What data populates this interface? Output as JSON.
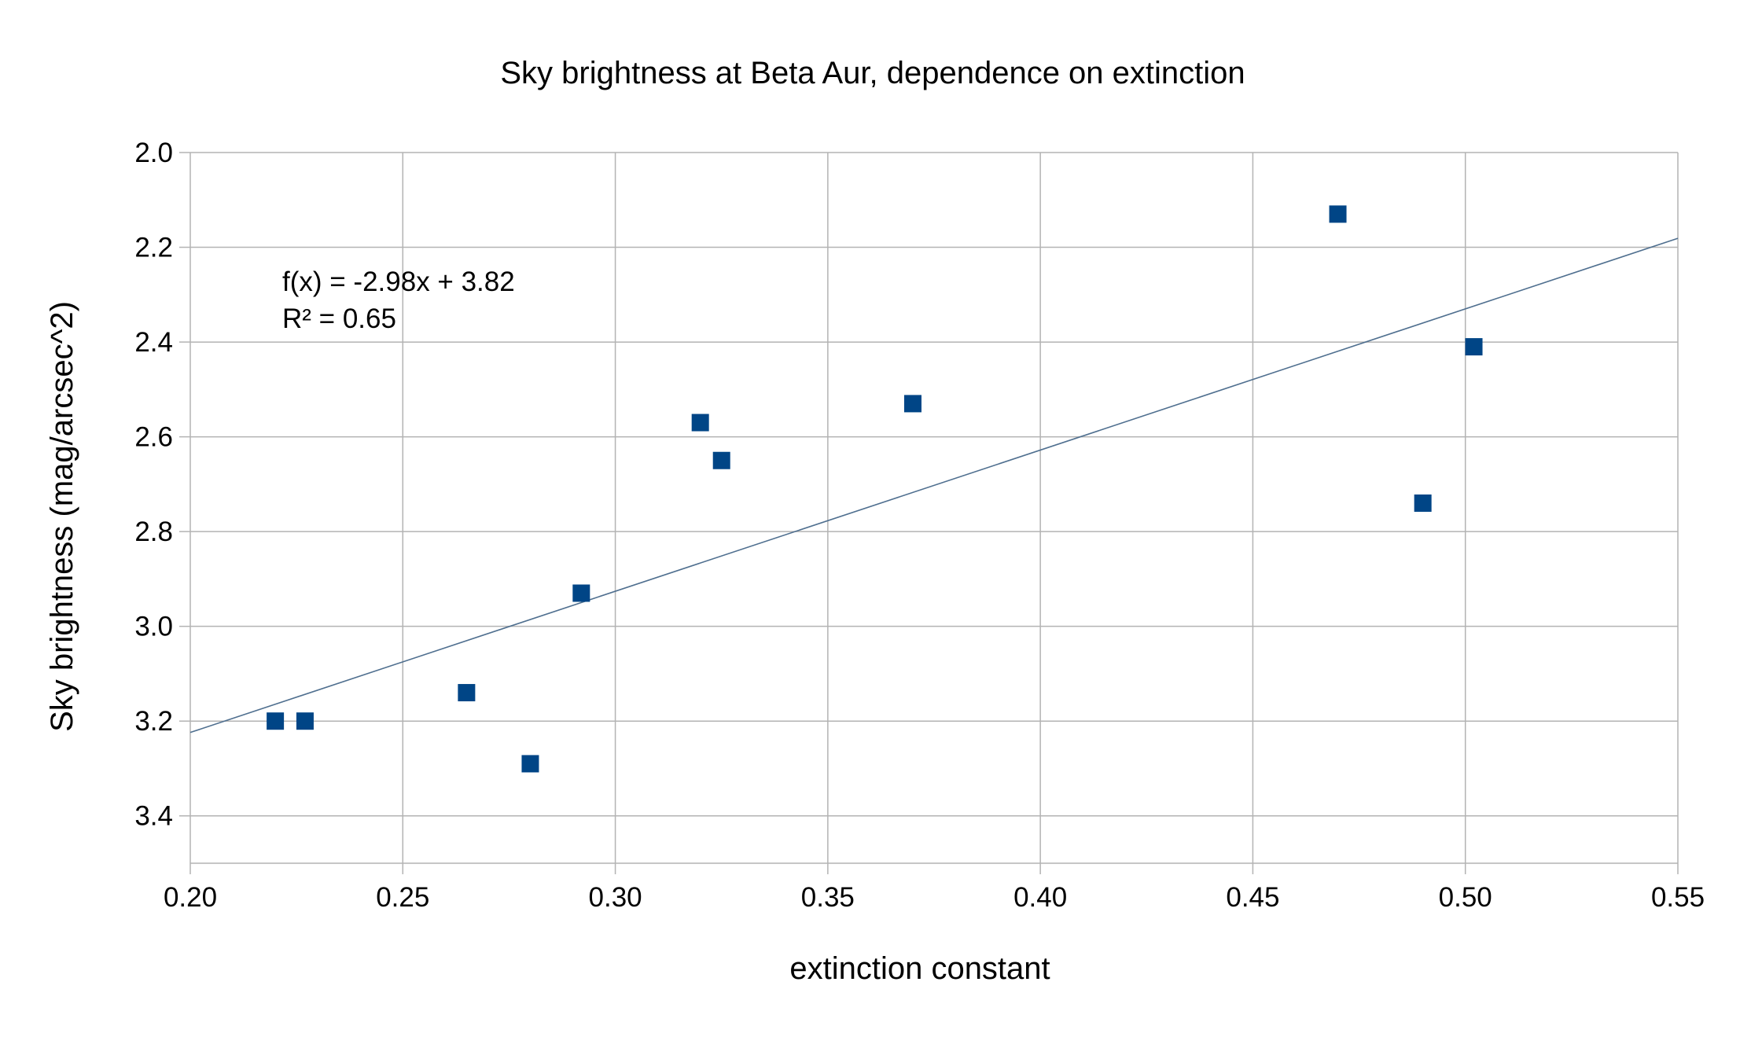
{
  "chart_data": {
    "type": "scatter",
    "title": "Sky brightness at Beta Aur, dependence on extinction",
    "xlabel": "extinction constant",
    "ylabel": "Sky brightness (mag/arcsec^2)",
    "xlim": [
      0.2,
      0.55
    ],
    "ylim": [
      2.0,
      3.5
    ],
    "y_inverted": true,
    "x_ticks": [
      0.2,
      0.25,
      0.3,
      0.35,
      0.4,
      0.45,
      0.5,
      0.55
    ],
    "x_tick_labels": [
      "0.20",
      "0.25",
      "0.30",
      "0.35",
      "0.40",
      "0.45",
      "0.50",
      "0.55"
    ],
    "y_ticks": [
      2.0,
      2.2,
      2.4,
      2.6,
      2.8,
      3.0,
      3.2,
      3.4
    ],
    "y_tick_labels": [
      "2.0",
      "2.2",
      "2.4",
      "2.6",
      "2.8",
      "3.0",
      "3.2",
      "3.4"
    ],
    "grid": true,
    "series": [
      {
        "name": "Sky brightness",
        "color": "#004586",
        "marker": "square",
        "points": [
          {
            "x": 0.22,
            "y": 3.2
          },
          {
            "x": 0.227,
            "y": 3.2
          },
          {
            "x": 0.265,
            "y": 3.14
          },
          {
            "x": 0.28,
            "y": 3.29
          },
          {
            "x": 0.292,
            "y": 2.93
          },
          {
            "x": 0.32,
            "y": 2.57
          },
          {
            "x": 0.325,
            "y": 2.65
          },
          {
            "x": 0.37,
            "y": 2.53
          },
          {
            "x": 0.47,
            "y": 2.13
          },
          {
            "x": 0.49,
            "y": 2.74
          },
          {
            "x": 0.502,
            "y": 2.41
          }
        ]
      }
    ],
    "trendline": {
      "type": "linear",
      "slope": -2.98,
      "intercept": 3.82,
      "color": "#4f6f8f",
      "equation_text": "f(x) = -2.98x + 3.82",
      "r2_text": "R² = 0.65"
    },
    "colors": {
      "grid": "#b3b3b3",
      "text": "#000000"
    }
  }
}
